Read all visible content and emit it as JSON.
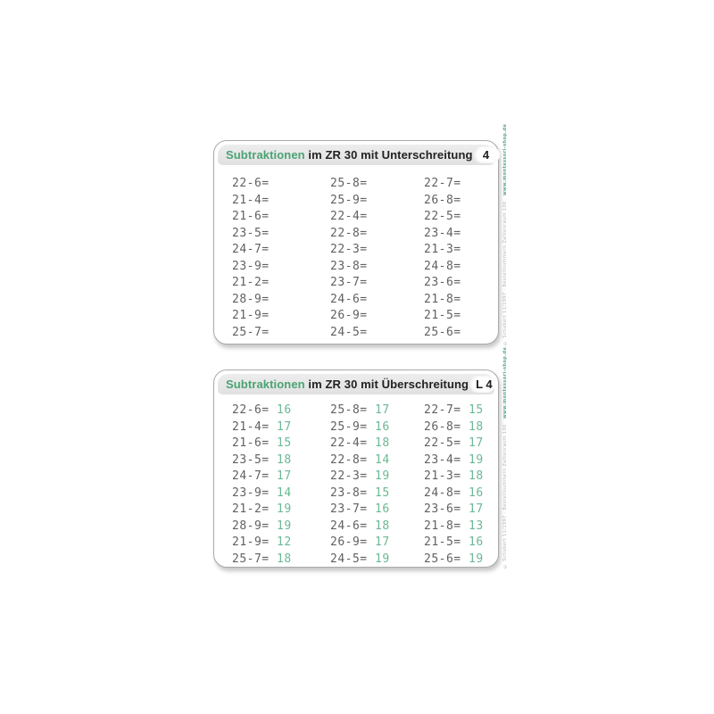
{
  "task_card": {
    "title_accent": "Subtraktionen",
    "title_rest": "im ZR 30 mit Unterschreitung",
    "badge": "4",
    "col1": [
      "22-6=",
      "21-4=",
      "21-6=",
      "23-5=",
      "24-7=",
      "23-9=",
      "21-2=",
      "28-9=",
      "21-9=",
      "25-7="
    ],
    "col2": [
      "25-8=",
      "25-9=",
      "22-4=",
      "22-8=",
      "22-3=",
      "23-8=",
      "23-7=",
      "24-6=",
      "26-9=",
      "24-5="
    ],
    "col3": [
      "22-7=",
      "26-8=",
      "22-5=",
      "23-4=",
      "21-3=",
      "24-8=",
      "23-6=",
      "21-8=",
      "21-5=",
      "25-6="
    ]
  },
  "solution_card": {
    "title_accent": "Subtraktionen",
    "title_rest": "im ZR 30 mit Überschreitung",
    "badge": "L 4",
    "col1": [
      {
        "p": "22-6=",
        "a": "16"
      },
      {
        "p": "21-4=",
        "a": "17"
      },
      {
        "p": "21-6=",
        "a": "15"
      },
      {
        "p": "23-5=",
        "a": "18"
      },
      {
        "p": "24-7=",
        "a": "17"
      },
      {
        "p": "23-9=",
        "a": "14"
      },
      {
        "p": "21-2=",
        "a": "19"
      },
      {
        "p": "28-9=",
        "a": "19"
      },
      {
        "p": "21-9=",
        "a": "12"
      },
      {
        "p": "25-7=",
        "a": "18"
      }
    ],
    "col2": [
      {
        "p": "25-8=",
        "a": "17"
      },
      {
        "p": "25-9=",
        "a": "16"
      },
      {
        "p": "22-4=",
        "a": "18"
      },
      {
        "p": "22-8=",
        "a": "14"
      },
      {
        "p": "22-3=",
        "a": "19"
      },
      {
        "p": "23-8=",
        "a": "15"
      },
      {
        "p": "23-7=",
        "a": "16"
      },
      {
        "p": "24-6=",
        "a": "18"
      },
      {
        "p": "26-9=",
        "a": "17"
      },
      {
        "p": "24-5=",
        "a": "19"
      }
    ],
    "col3": [
      {
        "p": "22-7=",
        "a": "15"
      },
      {
        "p": "26-8=",
        "a": "18"
      },
      {
        "p": "22-5=",
        "a": "17"
      },
      {
        "p": "23-4=",
        "a": "19"
      },
      {
        "p": "21-3=",
        "a": "18"
      },
      {
        "p": "24-8=",
        "a": "16"
      },
      {
        "p": "23-6=",
        "a": "17"
      },
      {
        "p": "21-8=",
        "a": "13"
      },
      {
        "p": "21-5=",
        "a": "16"
      },
      {
        "p": "25-6=",
        "a": "19"
      }
    ]
  },
  "edge": {
    "gray": "© Schubert 11/1997 · Bestellnummern Zahlenraum 100",
    "green": "www.montessori-shop.de"
  },
  "colors": {
    "accent_green": "#4aa474",
    "answer_green": "#6cb894",
    "problem_gray": "#616161",
    "header_gray": "#e6e6e6"
  }
}
